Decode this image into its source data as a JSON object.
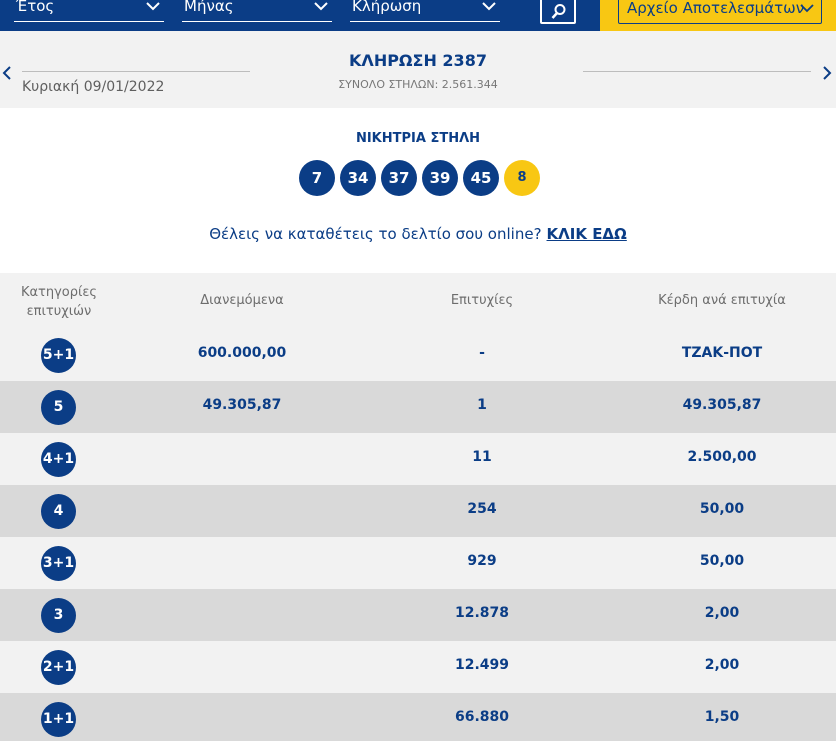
{
  "filters": {
    "year_label": "Έτος",
    "month_label": "Μήνας",
    "draw_label": "Κλήρωση",
    "archive_label": "Αρχείο Αποτελεσμάτων"
  },
  "draw": {
    "title": "ΚΛΗΡΩΣΗ 2387",
    "date": "Κυριακή 09/01/2022",
    "total_columns": "ΣΥΝΟΛΟ ΣΤΗΛΩΝ: 2.561.344"
  },
  "winning": {
    "title": "ΝΙΚΗΤΡΙΑ ΣΤΗΛΗ",
    "numbers": [
      "7",
      "34",
      "37",
      "39",
      "45"
    ],
    "bonus": "8"
  },
  "promo": {
    "text": "Θέλεις να καταθέτεις το δελτίο σου online?",
    "link": "ΚΛΙΚ ΕΔΩ"
  },
  "table": {
    "headers": {
      "category": "Κατηγορίες επιτυχιών",
      "distributed": "Διανεμόμενα",
      "winners": "Επιτυχίες",
      "prize": "Κέρδη ανά επιτυχία"
    },
    "rows": [
      {
        "category": "5+1",
        "distributed": "600.000,00",
        "winners": "-",
        "prize": "ΤΖΑΚ-ΠΟΤ"
      },
      {
        "category": "5",
        "distributed": "49.305,87",
        "winners": "1",
        "prize": "49.305,87"
      },
      {
        "category": "4+1",
        "distributed": "",
        "winners": "11",
        "prize": "2.500,00"
      },
      {
        "category": "4",
        "distributed": "",
        "winners": "254",
        "prize": "50,00"
      },
      {
        "category": "3+1",
        "distributed": "",
        "winners": "929",
        "prize": "50,00"
      },
      {
        "category": "3",
        "distributed": "",
        "winners": "12.878",
        "prize": "2,00"
      },
      {
        "category": "2+1",
        "distributed": "",
        "winners": "12.499",
        "prize": "2,00"
      },
      {
        "category": "1+1",
        "distributed": "",
        "winners": "66.880",
        "prize": "1,50"
      }
    ]
  },
  "colors": {
    "primary": "#0b3d86",
    "accent": "#f8c713",
    "row_alt": "#d9d9d9",
    "row_base": "#f2f2f2"
  }
}
